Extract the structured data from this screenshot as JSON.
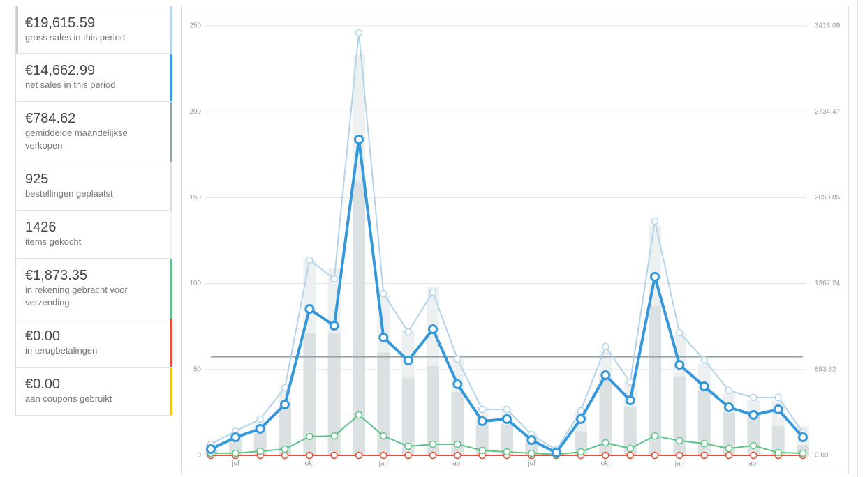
{
  "chart_data": {
    "type": "combo",
    "categories": [
      null,
      "jul",
      null,
      null,
      "okt",
      null,
      null,
      "jan",
      null,
      null,
      "apr",
      null,
      null,
      "jul",
      null,
      null,
      "okt",
      null,
      null,
      "jan",
      null,
      null,
      "apr",
      null,
      null
    ],
    "ylim": [
      0,
      250
    ],
    "yticks": [
      0,
      50,
      100,
      150,
      200,
      250
    ],
    "y2lim": [
      0,
      3418.09
    ],
    "y2ticks": [
      {
        "value": 0,
        "label": "0.00"
      },
      683.62,
      1367.24,
      2050.85,
      2734.47,
      3418.09
    ],
    "grid": true,
    "series": [
      {
        "name": "gross sales in this period",
        "total": "€19,615.59",
        "color": "#b1d4ea",
        "axis": "y2",
        "kind": "line",
        "width": 2,
        "values": [
          89,
          194,
          289,
          538,
          1554,
          1404,
          3363,
          1287,
          982,
          1298,
          766,
          366,
          366,
          166,
          44,
          355,
          866,
          583,
          1864,
          977,
          760,
          516,
          461,
          461,
          183
        ]
      },
      {
        "name": "net sales in this period",
        "total": "€14,662.99",
        "color": "#3498db",
        "axis": "y2",
        "kind": "line",
        "width": 4,
        "values": [
          50,
          144,
          211,
          405,
          1165,
          1032,
          2514,
          938,
          755,
          1004,
          566,
          272,
          289,
          122,
          22,
          289,
          638,
          438,
          1421,
          721,
          549,
          383,
          322,
          366,
          144
        ]
      },
      {
        "name": "gemiddelde maandelijkse verkopen",
        "total": "€784.62",
        "color": "#95a5a6",
        "axis": "y2",
        "kind": "hline",
        "value": 784.62
      },
      {
        "name": "bestellingen geplaatst",
        "total": 925,
        "color": "#dbe1e3",
        "axis": "y",
        "kind": "bar",
        "values": [
          3,
          9,
          13,
          28,
          71,
          71,
          159,
          60,
          45,
          52,
          37,
          18,
          18,
          7,
          1,
          14,
          45,
          28,
          87,
          46,
          38,
          25,
          24,
          17,
          6
        ]
      },
      {
        "name": "items gekocht",
        "total": 1426,
        "color": "#ecf0f1",
        "axis": "y",
        "kind": "bar",
        "values": [
          7,
          13,
          20,
          38,
          114,
          109,
          233,
          93,
          73,
          98,
          56,
          28,
          27,
          13,
          3,
          26,
          61,
          44,
          134,
          71,
          54,
          36,
          32,
          32,
          17
        ]
      },
      {
        "name": "in rekening gebracht voor verzending",
        "total": "€1,873.35",
        "color": "#5cc488",
        "axis": "y2",
        "kind": "line",
        "width": 2,
        "values": [
          17,
          17,
          33,
          50,
          150,
          155,
          322,
          155,
          72,
          89,
          89,
          39,
          28,
          17,
          6,
          28,
          100,
          55,
          155,
          117,
          94,
          55,
          78,
          22,
          17
        ]
      },
      {
        "name": "in terugbetalingen",
        "total": "€0.00",
        "color": "#e74c3c",
        "axis": "y2",
        "kind": "line",
        "width": 2,
        "values": [
          0,
          0,
          0,
          0,
          0,
          0,
          0,
          0,
          0,
          0,
          0,
          0,
          0,
          0,
          0,
          0,
          0,
          0,
          0,
          0,
          0,
          0,
          0,
          0,
          0
        ]
      },
      {
        "name": "aan coupons gebruikt",
        "total": "€0.00",
        "color": "#f1c40f",
        "axis": "y2",
        "kind": "line",
        "width": 2,
        "values": [
          0,
          0,
          0,
          0,
          0,
          0,
          0,
          0,
          0,
          0,
          0,
          0,
          0,
          0,
          0,
          0,
          0,
          0,
          0,
          0,
          0,
          0,
          0,
          0,
          0
        ]
      }
    ]
  }
}
